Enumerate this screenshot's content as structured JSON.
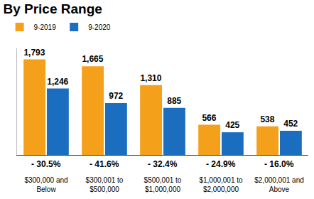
{
  "chart_data": {
    "type": "bar",
    "title": "By Price Range",
    "categories": [
      "$300,000 and Below",
      "$300,001 to $500,000",
      "$500,001 to $1,000,000",
      "$1,000,001 to $2,000,000",
      "$2,000,001 and Above"
    ],
    "series": [
      {
        "name": "9-2019",
        "color": "#f5a01a",
        "values": [
          1793,
          1665,
          1310,
          566,
          538
        ],
        "value_labels": [
          "1,793",
          "1,665",
          "1,310",
          "566",
          "538"
        ]
      },
      {
        "name": "9-2020",
        "color": "#1a6dbf",
        "values": [
          1246,
          972,
          885,
          425,
          452
        ],
        "value_labels": [
          "1,246",
          "972",
          "885",
          "425",
          "452"
        ]
      }
    ],
    "annotations": [
      "- 30.5%",
      "- 41.6%",
      "- 32.4%",
      "- 24.9%",
      "- 16.0%"
    ],
    "ylim": [
      0,
      2000
    ],
    "grid": false,
    "legend": "top left",
    "data_labels": true,
    "tick_labels": "x"
  }
}
